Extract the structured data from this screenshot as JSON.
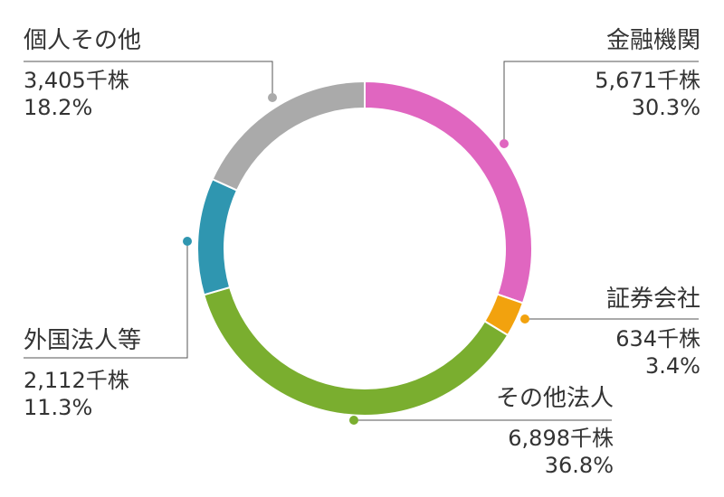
{
  "chart_data": {
    "type": "pie",
    "variant": "donut",
    "unit": "千株",
    "slices": [
      {
        "name": "金融機関",
        "value": 5671,
        "percent": "30.3%",
        "value_label": "5,671千株",
        "color": "#e066c0"
      },
      {
        "name": "証券会社",
        "value": 634,
        "percent": "3.4%",
        "value_label": "634千株",
        "color": "#f2a20e"
      },
      {
        "name": "その他法人",
        "value": 6898,
        "percent": "36.8%",
        "value_label": "6,898千株",
        "color": "#7aae2f"
      },
      {
        "name": "外国法人等",
        "value": 2112,
        "percent": "11.3%",
        "value_label": "2,112千株",
        "color": "#2f96b0"
      },
      {
        "name": "個人その他",
        "value": 3405,
        "percent": "18.2%",
        "value_label": "3,405千株",
        "color": "#aaaaaa"
      }
    ]
  }
}
